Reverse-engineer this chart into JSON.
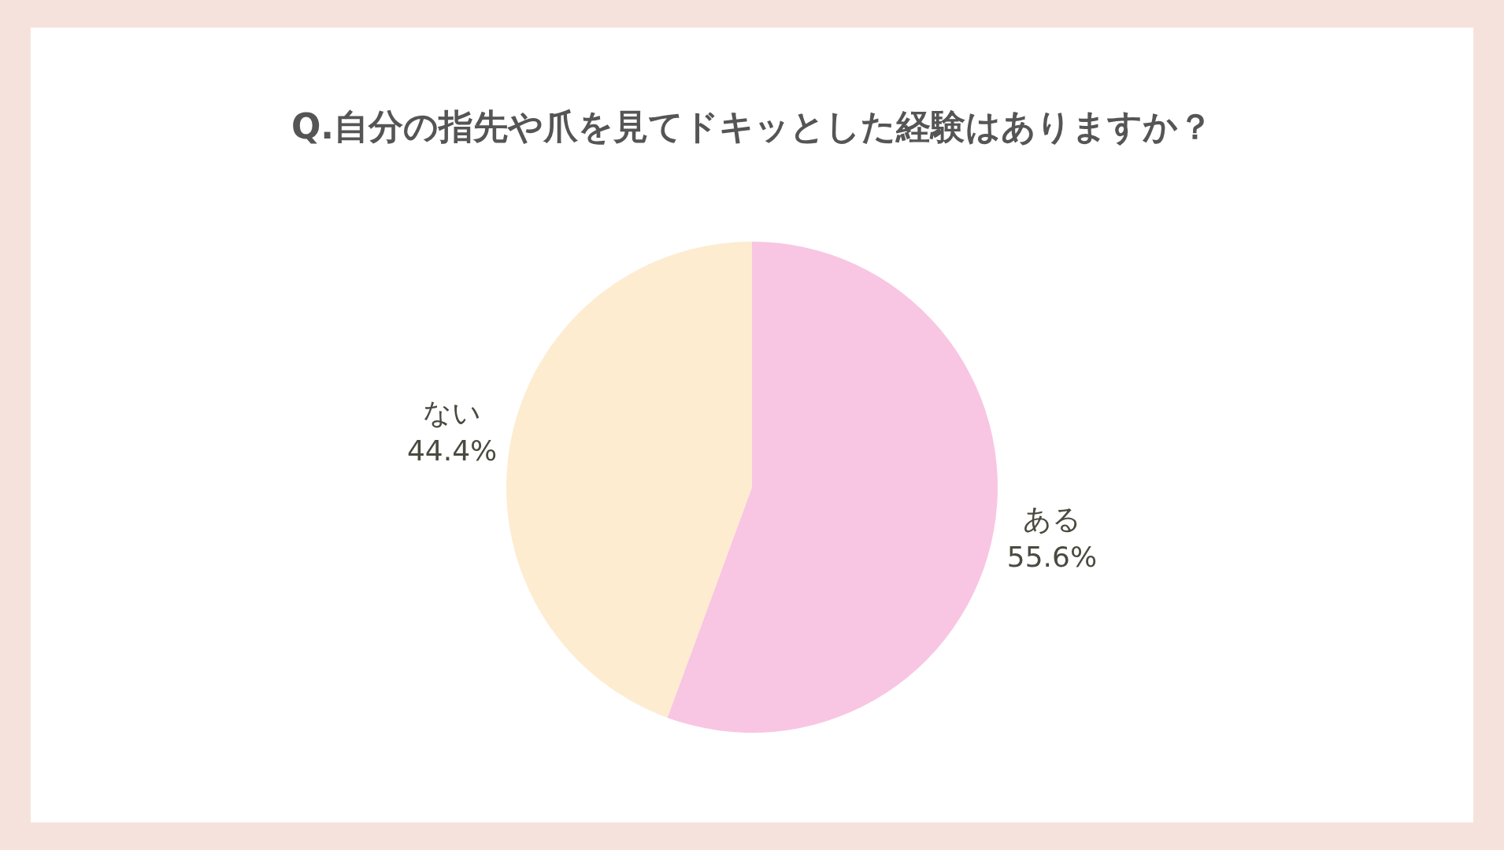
{
  "chart_data": {
    "type": "pie",
    "title": "Q.自分の指先や爪を見てドキッとした経験はありますか？",
    "categories": [
      "ある",
      "ない"
    ],
    "values": [
      55.6,
      44.4
    ],
    "value_labels": [
      "55.6%",
      "44.4%"
    ],
    "colors": [
      "#f8c6e2",
      "#fdecd0"
    ],
    "legend": false
  }
}
